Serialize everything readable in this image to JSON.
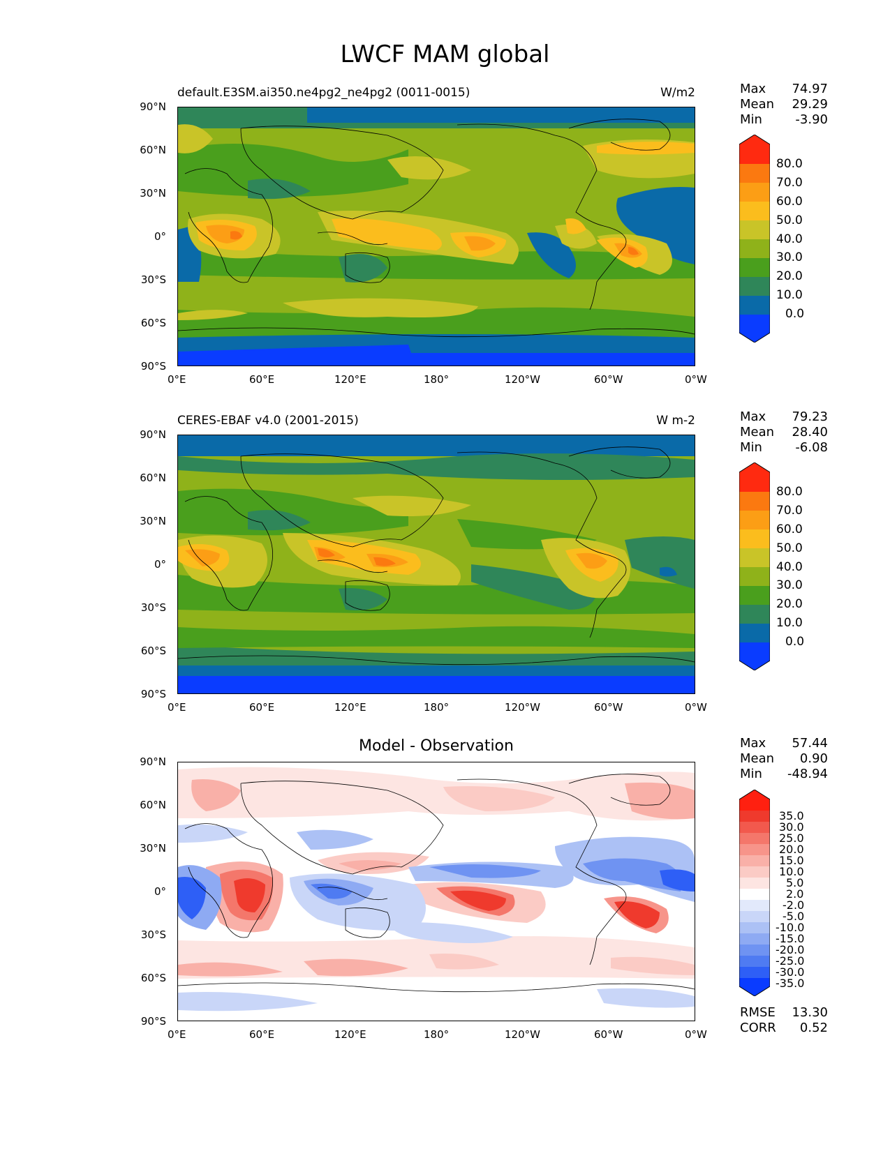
{
  "figure": {
    "title": "LWCF MAM global"
  },
  "panels": [
    {
      "id": "model",
      "subtitle_left": "default.E3SM.ai350.ne4pg2_ne4pg2 (0011-0015)",
      "subtitle_right": "W/m2",
      "stats": {
        "max_label": "Max",
        "max": "74.97",
        "mean_label": "Mean",
        "mean": "29.29",
        "min_label": "Min",
        "min": "-3.90"
      },
      "colorbar_labels": [
        "80.0",
        "70.0",
        "60.0",
        "50.0",
        "40.0",
        "30.0",
        "20.0",
        "10.0",
        "0.0"
      ]
    },
    {
      "id": "obs",
      "subtitle_left": "CERES-EBAF v4.0 (2001-2015)",
      "subtitle_right": "W m-2",
      "stats": {
        "max_label": "Max",
        "max": "79.23",
        "mean_label": "Mean",
        "mean": "28.40",
        "min_label": "Min",
        "min": "-6.08"
      },
      "colorbar_labels": [
        "80.0",
        "70.0",
        "60.0",
        "50.0",
        "40.0",
        "30.0",
        "20.0",
        "10.0",
        "0.0"
      ]
    },
    {
      "id": "diff",
      "subtitle_center": "Model - Observation",
      "stats": {
        "max_label": "Max",
        "max": "57.44",
        "mean_label": "Mean",
        "mean": "0.90",
        "min_label": "Min",
        "min": "-48.94"
      },
      "colorbar_labels": [
        "35.0",
        "30.0",
        "25.0",
        "20.0",
        "15.0",
        "10.0",
        "5.0",
        "2.0",
        "-2.0",
        "-5.0",
        "-10.0",
        "-15.0",
        "-20.0",
        "-25.0",
        "-30.0",
        "-35.0"
      ],
      "rmse_label": "RMSE",
      "rmse": "13.30",
      "corr_label": "CORR",
      "corr": "0.52"
    }
  ],
  "axes": {
    "y_ticks": [
      "90°N",
      "60°N",
      "30°N",
      "0°",
      "30°S",
      "60°S",
      "90°S"
    ],
    "x_ticks": [
      "0°E",
      "60°E",
      "120°E",
      "180°",
      "120°W",
      "60°W",
      "0°W"
    ]
  },
  "colors": {
    "lwcf_levels": [
      "#0a3cff",
      "#0a6aa8",
      "#2f8659",
      "#4a9f1d",
      "#8fb21a",
      "#c9c428",
      "#fbbd1d",
      "#fc9e15",
      "#fb7910",
      "#ff2a10"
    ],
    "diff_levels": [
      "#0a3cff",
      "#2e5ff6",
      "#4f7bf2",
      "#6f93f2",
      "#8eaaf3",
      "#acc1f5",
      "#c9d6f8",
      "#e2e9fb",
      "#ffffff",
      "#fde5e2",
      "#fbcbc5",
      "#f9b0a8",
      "#f7948a",
      "#f4776b",
      "#f2594d",
      "#ef3a2d",
      "#ff2010"
    ]
  }
}
